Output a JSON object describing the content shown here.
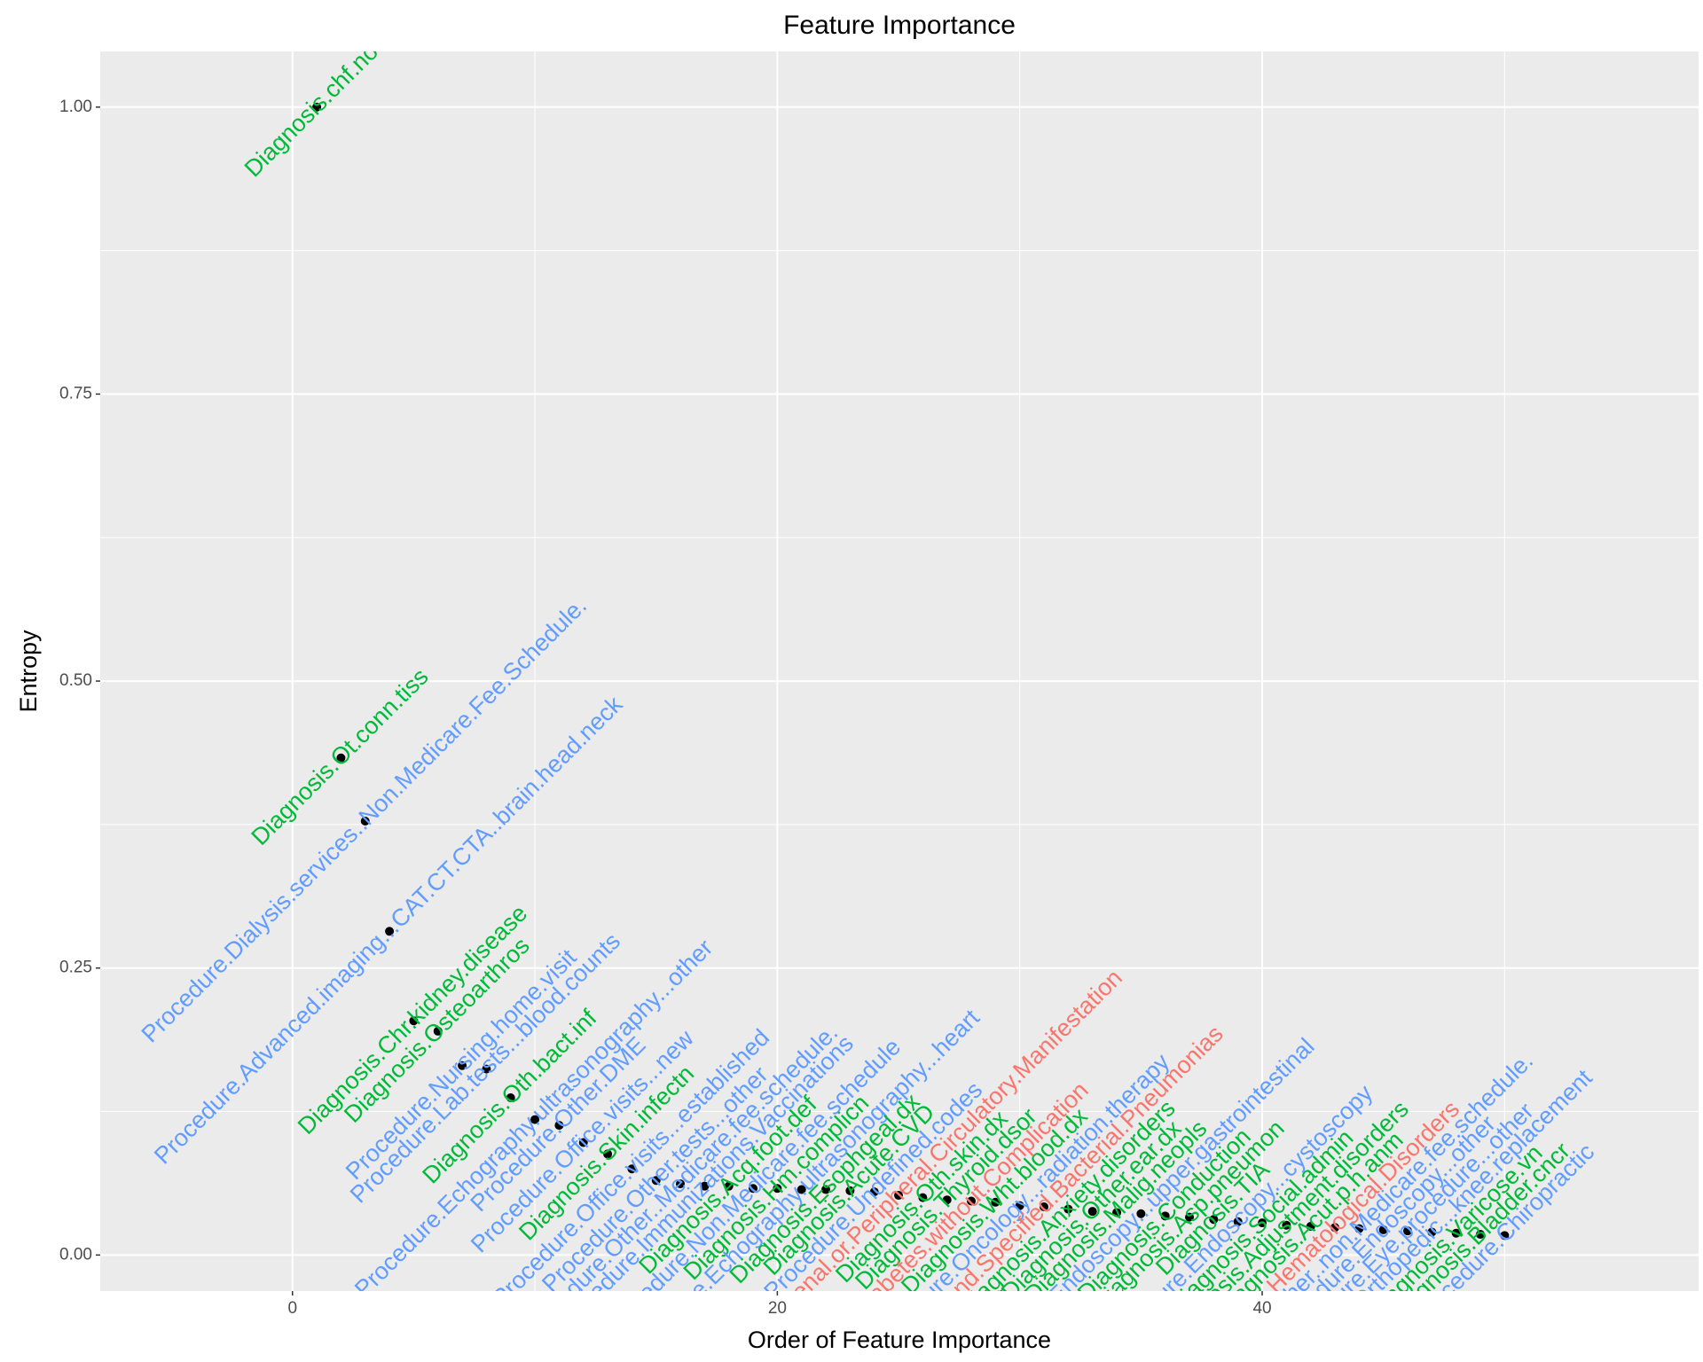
{
  "chart_data": {
    "type": "scatter",
    "title": "Feature Importance",
    "x_label": "Order of Feature Importance",
    "y_label": "Entropy",
    "x": [
      1,
      2,
      3,
      4,
      5,
      6,
      7,
      8,
      9,
      10,
      11,
      12,
      13,
      14,
      15,
      16,
      17,
      18,
      19,
      20,
      21,
      22,
      23,
      24,
      25,
      26,
      27,
      28,
      29,
      30,
      31,
      32,
      33,
      34,
      35,
      36,
      37,
      38,
      39,
      40,
      41,
      42,
      43,
      44,
      45,
      46,
      47,
      48,
      49,
      50
    ],
    "values": [
      1.0,
      0.433,
      0.378,
      0.282,
      0.204,
      0.195,
      0.165,
      0.162,
      0.137,
      0.118,
      0.113,
      0.098,
      0.088,
      0.075,
      0.065,
      0.062,
      0.06,
      0.06,
      0.058,
      0.058,
      0.057,
      0.057,
      0.056,
      0.055,
      0.052,
      0.05,
      0.048,
      0.047,
      0.046,
      0.043,
      0.042,
      0.04,
      0.038,
      0.037,
      0.036,
      0.034,
      0.033,
      0.031,
      0.029,
      0.028,
      0.026,
      0.025,
      0.024,
      0.023,
      0.022,
      0.021,
      0.02,
      0.019,
      0.018,
      0.017
    ],
    "point_labels": [
      "Diagnosis.chf.nos",
      "Diagnosis.Ot.conn.tiss",
      "Procedure.Dialysis.services..Non.Medicare.Fee.Schedule.",
      "Procedure.Advanced.imaging...CAT.CT.CTA..brain.head.neck",
      "Diagnosis.Chr.kidney.disease",
      "Diagnosis.Osteoarthros",
      "Procedure.Nursing.home.visit",
      "Procedure.Lab.tests...blood.counts",
      "Diagnosis.Oth.bact.inf",
      "Procedure.Echography.ultrasonography...other",
      "Procedure.Other.DME",
      "Procedure.Office.visits...new",
      "Diagnosis.Skin.infectn",
      "Procedure.Office.visits...established",
      "Procedure.Other.tests...other",
      "Procedure.Other..Medicare.fee.schedule.",
      "Procedure.Immunizations.Vaccinations",
      "Diagnosis.Acq.foot.def",
      "Procedure.Non.Medicare.fee.schedule",
      "Diagnosis.Hm.complicn",
      "Procedure.Echography.ultrasonography...heart",
      "Diagnosis.Esophgeal.dx",
      "Diagnosis.Acute.CVD",
      "Procedure.Undefined.codes",
      "Diabetes.with.Renal.or.Peripheral.Circulatory.Manifestation",
      "Diagnosis.Oth.skin.dx",
      "Diagnosis.Thyroid.dsor",
      "Diabetes.without.Complication",
      "Diagnosis.Wht.blood.dx",
      "Procedure.Oncology...radiation.therapy",
      "Aspiration.and.Specified.Bacterial.Pneumonias",
      "Diagnosis.Anxiety.disorders",
      "Diagnosis.Other.ear.dx",
      "Diagnosis.Malig.neopls",
      "Procedure.Endoscopy...upper.gastrointestinal",
      "Diagnosis.Conduction",
      "Diagnosis.Asp.pneumon",
      "Diagnosis.TIA",
      "Procedure.Endoscopy...cystoscopy",
      "Diagnosis.Social.admin",
      "Diagnosis.Adjustment.disorders",
      "Diagnosis.Acut.p.h.anm",
      "Severe.Hematological.Disorders",
      "Procedure.Other..non.Medicare.fee.schedule.",
      "Procedure.Endoscopy...other",
      "Procedure.Eye.procedure...other",
      "Procedure.Orthopedic...knee.replacement",
      "Diagnosis.Varicose.vn",
      "Diagnosis.Bladder.cncr",
      "Procedure.Chiropractic"
    ],
    "label_colors": [
      "#00ba38",
      "#00ba38",
      "#619cff",
      "#619cff",
      "#00ba38",
      "#00ba38",
      "#619cff",
      "#619cff",
      "#00ba38",
      "#619cff",
      "#619cff",
      "#619cff",
      "#00ba38",
      "#619cff",
      "#619cff",
      "#619cff",
      "#619cff",
      "#00ba38",
      "#619cff",
      "#00ba38",
      "#619cff",
      "#00ba38",
      "#00ba38",
      "#619cff",
      "#f8766d",
      "#00ba38",
      "#00ba38",
      "#f8766d",
      "#00ba38",
      "#619cff",
      "#f8766d",
      "#00ba38",
      "#00ba38",
      "#00ba38",
      "#619cff",
      "#00ba38",
      "#00ba38",
      "#00ba38",
      "#619cff",
      "#00ba38",
      "#00ba38",
      "#00ba38",
      "#f8766d",
      "#619cff",
      "#619cff",
      "#619cff",
      "#619cff",
      "#00ba38",
      "#00ba38",
      "#619cff"
    ],
    "point_color": "#000000",
    "xlim": [
      -7.93,
      58.0
    ],
    "ylim": [
      -0.0314,
      1.0485
    ],
    "xticks": [
      0,
      20,
      40
    ],
    "yticks": [
      {
        "value": 0,
        "label": "0.00"
      },
      {
        "value": 0.25,
        "label": "0.25"
      },
      {
        "value": 0.5,
        "label": "0.50"
      },
      {
        "value": 0.75,
        "label": "0.75"
      },
      {
        "value": 1,
        "label": "1.00"
      }
    ],
    "grid": true
  }
}
